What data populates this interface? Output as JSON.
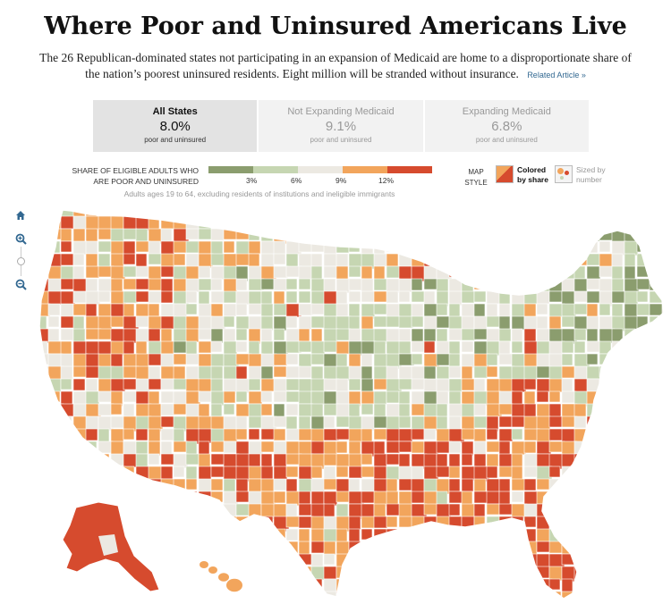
{
  "header": {
    "title": "Where Poor and Uninsured Americans Live",
    "dek": "The 26 Republican-dominated states not participating in an expansion of Medicaid are home to a disproportionate share of the nation’s poorest uninsured residents. Eight million will be stranded without insurance.",
    "related_link": "Related Article »"
  },
  "tabs": [
    {
      "name": "All States",
      "value": "8.0%",
      "sub": "poor and uninsured",
      "active": true
    },
    {
      "name": "Not Expanding Medicaid",
      "value": "9.1%",
      "sub": "poor and uninsured",
      "active": false
    },
    {
      "name": "Expanding Medicaid",
      "value": "6.8%",
      "sub": "poor and uninsured",
      "active": false
    }
  ],
  "legend": {
    "title": "Share of eligible adults who are poor and uninsured",
    "bins": [
      "#8b9d6e",
      "#c6d6b2",
      "#ece9e2",
      "#f2a55c",
      "#d64b2e"
    ],
    "ticks": [
      "3%",
      "6%",
      "9%",
      "12%"
    ],
    "note": "Adults ages 19 to 64, excluding residents of institutions and ineligible immigrants"
  },
  "map_style": {
    "label": "Map style",
    "options": [
      {
        "label": "Colored by share",
        "selected": true
      },
      {
        "label": "Sized by number",
        "selected": false
      }
    ]
  },
  "map": {
    "colors": {
      "dark_green": "#8b9d6e",
      "light_green": "#c6d6b2",
      "neutral": "#ece9e2",
      "orange": "#f2a55c",
      "red": "#d64b2e",
      "border": "#ffffff"
    },
    "controls": [
      "home-icon",
      "zoom-in-icon",
      "zoom-slider",
      "zoom-out-icon"
    ]
  }
}
